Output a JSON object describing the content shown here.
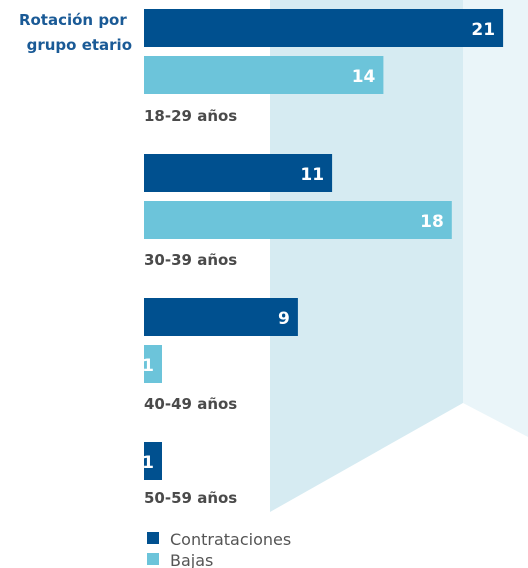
{
  "chart_data": {
    "type": "bar",
    "orientation": "horizontal",
    "title": "Rotación por grupo etario",
    "title_lines": [
      "Rotación por",
      "grupo etario"
    ],
    "categories": [
      "18-29 años",
      "30-39 años",
      "40-49 años",
      "50-59 años"
    ],
    "series": [
      {
        "name": "Contrataciones",
        "color": "#00508f",
        "values": [
          21,
          11,
          9,
          1
        ]
      },
      {
        "name": "Bajas",
        "color": "#6cc4da",
        "values": [
          14,
          18,
          1,
          null
        ]
      }
    ],
    "xlim": [
      0,
      23
    ],
    "grid": false,
    "legend_position": "bottom-left",
    "background_colors": [
      "#d6ebf2",
      "#eaf5f9"
    ]
  }
}
